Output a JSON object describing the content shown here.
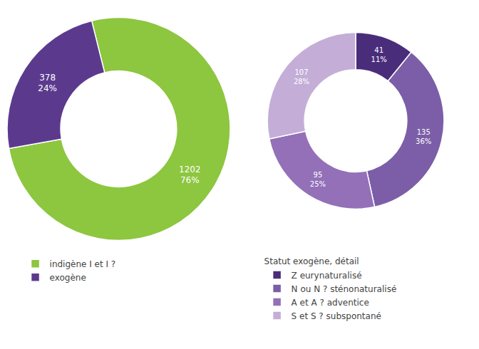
{
  "chart_data": [
    {
      "type": "pie",
      "categories": [
        "indigène I et I ?",
        "exogène"
      ],
      "values": [
        1202,
        378
      ],
      "value_labels": [
        "1202\n76%",
        "378\n24%"
      ],
      "colors": [
        "#8dc63f",
        "#5b3a8e"
      ],
      "data_labels": true,
      "legend": "lower left"
    },
    {
      "type": "pie",
      "legend_title": "Statut exogène, détail",
      "categories": [
        "Z eurynaturalisé",
        "N ou N ? sténonaturalisé",
        "A et A ? adventice",
        "S et S ? subspontané"
      ],
      "values": [
        41,
        135,
        95,
        107
      ],
      "value_labels": [
        "41\n11%",
        "135\n36%",
        "95\n25%",
        "107\n28%"
      ],
      "colors": [
        "#4a2d7a",
        "#7b5ea7",
        "#9370b8",
        "#c4aed8"
      ],
      "data_labels": true,
      "legend": "lower right"
    }
  ]
}
